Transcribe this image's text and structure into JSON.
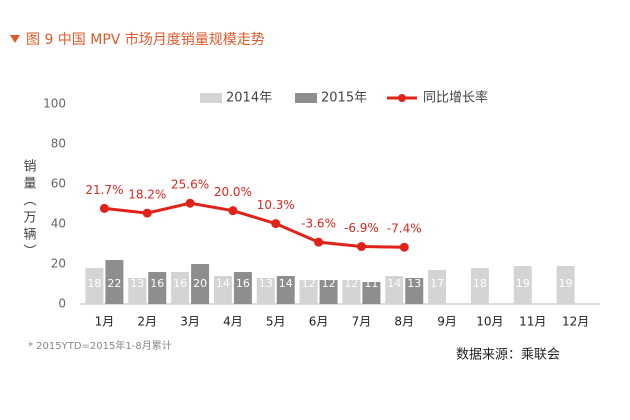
{
  "title": "图 9  中国 MPV 市场月度销量规模走势",
  "footnote": "* 2015YTD=2015年1-8月累计",
  "source": "数据来源：乘联会",
  "chart_data": {
    "type": "bar_line",
    "y_label": "销量（万辆）",
    "categories": [
      "1月",
      "2月",
      "3月",
      "4月",
      "5月",
      "6月",
      "7月",
      "8月",
      "9月",
      "10月",
      "11月",
      "12月"
    ],
    "series": [
      {
        "name": "2014年",
        "color": "#d4d4d4",
        "values": [
          18,
          13,
          16,
          14,
          13,
          12,
          12,
          14,
          17,
          18,
          19,
          19
        ]
      },
      {
        "name": "2015年",
        "color": "#8e8e8e",
        "values": [
          22,
          16,
          20,
          16,
          14,
          12,
          11,
          13,
          null,
          null,
          null,
          null
        ]
      },
      {
        "name": "同比增长率",
        "color": "#e0231a",
        "axis": "y2",
        "values": [
          21.7,
          18.2,
          25.6,
          20.0,
          10.3,
          -3.6,
          -6.9,
          -7.4,
          null,
          null,
          null,
          null
        ],
        "value_labels": [
          "21.7%",
          "18.2%",
          "25.6%",
          "20.0%",
          "10.3%",
          "-3.6%",
          "-6.9%",
          "-7.4%",
          null,
          null,
          null,
          null
        ]
      }
    ],
    "ylim": [
      0,
      100
    ],
    "yticks": [
      0,
      20,
      40,
      60,
      80,
      100
    ],
    "y2lim": [
      -50,
      100
    ]
  }
}
